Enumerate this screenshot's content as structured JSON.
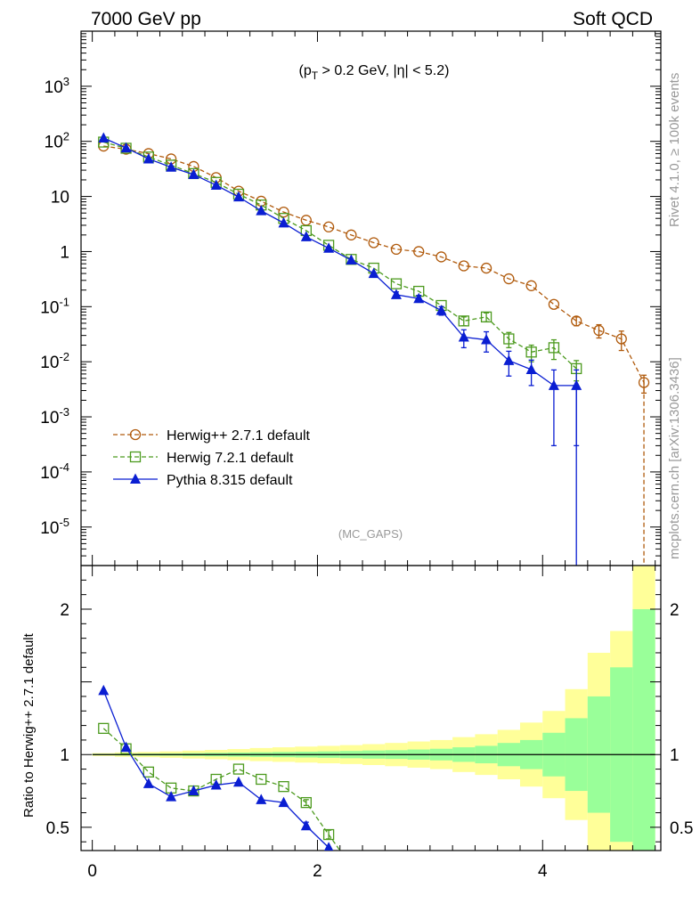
{
  "header": {
    "left_title": "7000 GeV pp",
    "right_title": "Soft QCD",
    "side_label_top": "Rivet 4.1.0, ≥ 100k events",
    "side_label_bottom": "mcplots.cern.ch [arXiv:1306.3436]",
    "cut_text": "(pT > 0.2 GeV, |η| < 5.2)",
    "analysis_label": "(MC_GAPS)"
  },
  "chart_data": [
    {
      "type": "scatter",
      "role": "main",
      "yscale": "log",
      "xlim": [
        -0.1,
        5.05
      ],
      "ylim": [
        2e-06,
        10000
      ],
      "ytick_labels": [
        "10^-5",
        "10^-4",
        "10^-3",
        "10^-2",
        "10^-1",
        "1",
        "10",
        "10^2",
        "10^3"
      ],
      "series": [
        {
          "name": "Herwig++ 2.7.1 default",
          "color": "#b05a0c",
          "marker": "open-circle",
          "line": "dashed",
          "x": [
            0.1,
            0.3,
            0.5,
            0.7,
            0.9,
            1.1,
            1.3,
            1.5,
            1.7,
            1.9,
            2.1,
            2.3,
            2.5,
            2.7,
            2.9,
            3.1,
            3.3,
            3.5,
            3.7,
            3.9,
            4.1,
            4.3,
            4.5,
            4.7,
            4.9
          ],
          "values": [
            82,
            72,
            60,
            48,
            35,
            22,
            12.5,
            8.2,
            5.2,
            3.7,
            2.8,
            2.0,
            1.45,
            1.1,
            1.0,
            0.8,
            0.55,
            0.5,
            0.32,
            0.24,
            0.11,
            0.055,
            0.037,
            0.026,
            0.0042
          ],
          "errors": [
            0,
            0,
            0,
            0,
            0,
            0,
            0,
            0,
            0,
            0,
            0,
            0,
            0,
            0,
            0,
            0,
            0,
            0,
            0,
            0,
            0,
            0.01,
            0.01,
            0.01,
            0.0015
          ],
          "drop_to_floor_after": true
        },
        {
          "name": "Herwig 7.2.1 default",
          "color": "#4c9a1e",
          "marker": "open-square",
          "line": "dashed",
          "x": [
            0.1,
            0.3,
            0.5,
            0.7,
            0.9,
            1.1,
            1.3,
            1.5,
            1.7,
            1.9,
            2.1,
            2.3,
            2.5,
            2.7,
            2.9,
            3.1,
            3.3,
            3.5,
            3.7,
            3.9,
            4.1,
            4.3
          ],
          "values": [
            97,
            75,
            52,
            37,
            26,
            18,
            11,
            7,
            4,
            2.4,
            1.3,
            0.72,
            0.5,
            0.26,
            0.19,
            0.105,
            0.055,
            0.065,
            0.026,
            0.015,
            0.018,
            0.0075
          ],
          "errors": [
            0,
            0,
            0,
            0,
            0,
            0,
            0,
            0,
            0,
            0,
            0,
            0,
            0,
            0,
            0,
            0,
            0.01,
            0.012,
            0.008,
            0.005,
            0.007,
            0.003
          ]
        },
        {
          "name": "Pythia 8.315 default",
          "color": "#0a1ed2",
          "marker": "filled-triangle",
          "line": "solid",
          "x": [
            0.1,
            0.3,
            0.5,
            0.7,
            0.9,
            1.1,
            1.3,
            1.5,
            1.7,
            1.9,
            2.1,
            2.3,
            2.5,
            2.7,
            2.9,
            3.1,
            3.3,
            3.5,
            3.7,
            3.9,
            4.1,
            4.3
          ],
          "values": [
            115,
            76,
            48,
            34,
            25,
            16,
            9.8,
            5.5,
            3.3,
            1.85,
            1.15,
            0.7,
            0.4,
            0.165,
            0.14,
            0.085,
            0.028,
            0.025,
            0.0105,
            0.0072,
            0.0037,
            0.0037
          ],
          "errors": [
            0,
            0,
            0,
            0,
            0,
            0,
            0,
            0,
            0,
            0,
            0,
            0,
            0,
            0.02,
            0.02,
            0.015,
            0.01,
            0.01,
            0.005,
            0.0035,
            0.0034,
            0.0034
          ],
          "drop_to_floor_after": true
        }
      ]
    },
    {
      "type": "scatter",
      "role": "ratio",
      "ylabel": "Ratio to Herwig++ 2.7.1 default",
      "xlim": [
        -0.1,
        5.05
      ],
      "ylim": [
        0.34,
        2.3
      ],
      "x_tick_labels": [
        "0",
        "2",
        "4"
      ],
      "y_tick_labels": [
        "0.5",
        "1",
        "2"
      ],
      "band_edges": [
        0,
        0.2,
        0.4,
        0.6,
        0.8,
        1.0,
        1.2,
        1.4,
        1.6,
        1.8,
        2.0,
        2.2,
        2.4,
        2.6,
        2.8,
        3.0,
        3.2,
        3.4,
        3.6,
        3.8,
        4.0,
        4.2,
        4.4,
        4.6,
        4.8,
        5.0
      ],
      "stat_band": [
        0.005,
        0.006,
        0.007,
        0.008,
        0.01,
        0.012,
        0.014,
        0.016,
        0.018,
        0.02,
        0.022,
        0.025,
        0.028,
        0.03,
        0.035,
        0.04,
        0.05,
        0.06,
        0.08,
        0.1,
        0.15,
        0.25,
        0.4,
        0.6,
        1.0
      ],
      "total_band": [
        0.01,
        0.015,
        0.018,
        0.022,
        0.027,
        0.032,
        0.038,
        0.045,
        0.05,
        0.055,
        0.06,
        0.065,
        0.072,
        0.08,
        0.09,
        0.1,
        0.12,
        0.14,
        0.17,
        0.22,
        0.3,
        0.45,
        0.7,
        0.85,
        1.3
      ],
      "series": [
        {
          "name": "Herwig 7.2.1 default",
          "color": "#4c9a1e",
          "marker": "open-square",
          "line": "dashed",
          "x": [
            0.1,
            0.3,
            0.5,
            0.7,
            0.9,
            1.1,
            1.3,
            1.5,
            1.7,
            1.9,
            2.1,
            2.2
          ],
          "values": [
            1.18,
            1.04,
            0.88,
            0.77,
            0.75,
            0.83,
            0.9,
            0.83,
            0.78,
            0.67,
            0.45,
            0.34
          ],
          "errors": [
            0,
            0,
            0,
            0,
            0,
            0,
            0,
            0,
            0,
            0.02,
            0.03,
            0
          ],
          "marker_mask": [
            1,
            1,
            1,
            1,
            1,
            1,
            1,
            1,
            1,
            1,
            1,
            0
          ]
        },
        {
          "name": "Pythia 8.315 default",
          "color": "#0a1ed2",
          "marker": "filled-triangle",
          "line": "solid",
          "x": [
            0.1,
            0.3,
            0.5,
            0.7,
            0.9,
            1.1,
            1.3,
            1.5,
            1.7,
            1.9,
            2.1,
            2.12
          ],
          "values": [
            1.44,
            1.05,
            0.8,
            0.71,
            0.75,
            0.79,
            0.81,
            0.69,
            0.67,
            0.51,
            0.36,
            0.34
          ],
          "errors": [
            0,
            0,
            0,
            0,
            0,
            0,
            0,
            0,
            0,
            0.025,
            0,
            0
          ],
          "marker_mask": [
            1,
            1,
            1,
            1,
            1,
            1,
            1,
            1,
            1,
            1,
            1,
            0
          ]
        }
      ]
    }
  ]
}
